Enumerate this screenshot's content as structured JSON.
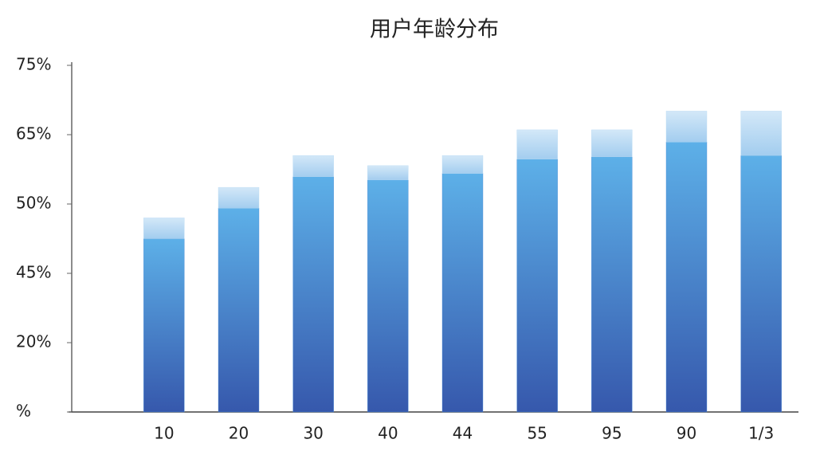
{
  "chart_data": {
    "type": "stacked-bar",
    "title": "用户年龄分布",
    "categories": [
      "10",
      "20",
      "30",
      "40",
      "44",
      "55",
      "95",
      "90",
      "1/3"
    ],
    "series": [
      {
        "color": "#4f8fd8",
        "values": [
          47.5,
          49.7,
          55.9,
          55.2,
          56.6,
          59.7,
          60.2,
          63.4,
          60.5
        ]
      },
      {
        "color": "#b9daf3",
        "values": [
          1.5,
          3.9,
          4.6,
          3.1,
          3.9,
          6.0,
          5.5,
          5.0,
          7.9
        ]
      }
    ],
    "ylim": [
      0,
      75
    ],
    "yticks": [
      {
        "value": 0,
        "label": "%"
      },
      {
        "value": 20,
        "label": "20%"
      },
      {
        "value": 45,
        "label": "45%"
      },
      {
        "value": 50,
        "label": "50%"
      },
      {
        "value": 65,
        "label": "65%"
      },
      {
        "value": 75,
        "label": "75%"
      }
    ]
  }
}
